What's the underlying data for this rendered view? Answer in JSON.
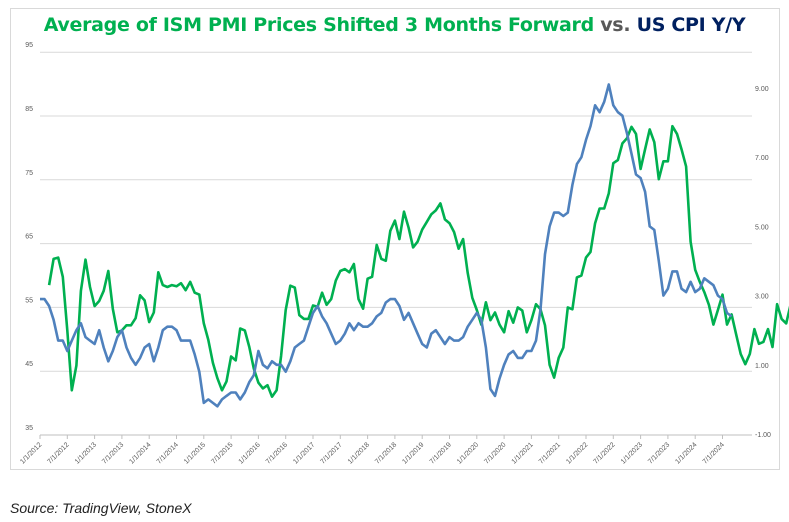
{
  "chart_data": {
    "type": "line",
    "title": "Average of ISM PMI Prices Shifted 3 Months Forward vs. US CPI Y/Y",
    "title_parts": [
      {
        "text": "Average of ISM PMI Prices Shifted 3 Months Forward",
        "color": "#00b050"
      },
      {
        "text": " vs. ",
        "color": "#595959"
      },
      {
        "text": "US CPI Y/Y",
        "color": "#002060"
      }
    ],
    "xlabel": "",
    "ylabel_left": "",
    "ylabel_right": "",
    "x_start": "1/1/2012",
    "x_end": "12/1/2024",
    "x_tick_labels": [
      "1/1/2012",
      "7/1/2012",
      "1/1/2013",
      "7/1/2013",
      "1/1/2014",
      "7/1/2014",
      "1/1/2015",
      "7/1/2015",
      "1/1/2016",
      "7/1/2016",
      "1/1/2017",
      "7/1/2017",
      "1/1/2018",
      "7/1/2018",
      "1/1/2019",
      "7/1/2019",
      "1/1/2020",
      "7/1/2020",
      "1/1/2021",
      "7/1/2021",
      "1/1/2022",
      "7/1/2022",
      "1/1/2023",
      "7/1/2023",
      "1/1/2024",
      "7/1/2024"
    ],
    "y_left": {
      "min": 35,
      "max": 95,
      "ticks": [
        "35",
        "45",
        "55",
        "65",
        "75",
        "85",
        "95"
      ]
    },
    "y_right": {
      "min": -1,
      "max": 10,
      "ticks": [
        "-1.00",
        "1.00",
        "3.00",
        "5.00",
        "7.00",
        "9.00"
      ]
    },
    "grid": true,
    "legend": "none",
    "series": [
      {
        "name": "Average of ISM PMI Prices Shifted 3 Months Forward",
        "axis": "left",
        "color": "#00b050",
        "start_month": 2,
        "values": [
          58.5,
          62.6,
          62.8,
          59.8,
          51.4,
          42.0,
          45.9,
          57.6,
          62.5,
          58.2,
          55.2,
          56.0,
          57.6,
          60.7,
          54.8,
          51.1,
          51.4,
          52.2,
          52.2,
          53.3,
          56.9,
          56.1,
          52.7,
          54.2,
          60.5,
          58.5,
          58.2,
          58.5,
          58.3,
          58.8,
          57.7,
          59.0,
          57.3,
          57.0,
          52.5,
          49.9,
          46.3,
          43.9,
          42.0,
          43.4,
          47.3,
          46.7,
          51.7,
          51.4,
          48.8,
          45.4,
          43.2,
          42.3,
          42.8,
          41.0,
          42.0,
          47.4,
          54.6,
          58.4,
          58.1,
          53.8,
          53.2,
          53.2,
          55.3,
          55.1,
          57.3,
          55.4,
          56.3,
          59.2,
          60.7,
          61.0,
          60.5,
          61.8,
          56.3,
          54.8,
          59.5,
          59.8,
          64.8,
          62.6,
          62.3,
          67.0,
          68.6,
          65.7,
          70.0,
          67.5,
          64.4,
          65.3,
          67.2,
          68.4,
          69.6,
          70.2,
          71.3,
          68.8,
          68.2,
          66.8,
          64.2,
          65.7,
          60.4,
          56.5,
          54.6,
          52.3,
          55.8,
          53.0,
          54.2,
          52.3,
          51.1,
          54.4,
          52.6,
          55.0,
          54.5,
          51.1,
          53.0,
          55.5,
          54.7,
          52.2,
          46.0,
          44.0,
          47.1,
          48.7,
          55.0,
          54.7,
          59.7,
          60.0,
          62.8,
          63.7,
          68.2,
          70.5,
          70.5,
          72.9,
          77.6,
          78.1,
          80.7,
          81.5,
          83.3,
          82.2,
          76.7,
          79.8,
          82.9,
          80.9,
          75.1,
          77.9,
          77.9,
          83.4,
          82.2,
          79.8,
          77.1,
          65.3,
          60.9,
          59.0,
          57.4,
          55.4,
          52.3,
          54.6,
          57.0,
          52.3,
          53.9,
          50.8,
          47.7,
          46.1,
          47.7,
          51.6,
          49.3,
          49.6,
          51.6,
          48.8,
          55.5,
          53.2,
          52.5,
          55.6,
          52.2,
          52.5,
          53.3,
          51.6,
          53.8,
          52.8,
          53.3,
          52.8,
          52.0,
          51.7,
          53.9
        ]
      },
      {
        "name": "US CPI Y/Y",
        "axis": "right",
        "color": "#4f81bd",
        "start_month": 0,
        "values": [
          2.9,
          2.9,
          2.7,
          2.3,
          1.7,
          1.7,
          1.4,
          1.7,
          2.0,
          2.2,
          1.8,
          1.7,
          1.6,
          2.0,
          1.5,
          1.1,
          1.4,
          1.8,
          2.0,
          1.5,
          1.2,
          1.0,
          1.2,
          1.5,
          1.6,
          1.1,
          1.5,
          2.0,
          2.1,
          2.1,
          2.0,
          1.7,
          1.7,
          1.7,
          1.3,
          0.8,
          -0.1,
          0.0,
          -0.1,
          -0.2,
          0.0,
          0.1,
          0.2,
          0.2,
          0.0,
          0.2,
          0.5,
          0.7,
          1.4,
          1.0,
          0.9,
          1.1,
          1.0,
          1.0,
          0.8,
          1.1,
          1.5,
          1.6,
          1.7,
          2.1,
          2.5,
          2.7,
          2.4,
          2.2,
          1.9,
          1.6,
          1.7,
          1.9,
          2.2,
          2.0,
          2.2,
          2.1,
          2.1,
          2.2,
          2.4,
          2.5,
          2.8,
          2.9,
          2.9,
          2.7,
          2.3,
          2.5,
          2.2,
          1.9,
          1.6,
          1.5,
          1.9,
          2.0,
          1.8,
          1.6,
          1.8,
          1.7,
          1.7,
          1.8,
          2.1,
          2.3,
          2.5,
          2.3,
          1.5,
          0.3,
          0.1,
          0.6,
          1.0,
          1.3,
          1.4,
          1.2,
          1.2,
          1.4,
          1.4,
          1.7,
          2.6,
          4.2,
          5.0,
          5.4,
          5.4,
          5.3,
          5.4,
          6.2,
          6.8,
          7.0,
          7.5,
          7.9,
          8.5,
          8.3,
          8.6,
          9.1,
          8.5,
          8.3,
          8.2,
          7.7,
          7.1,
          6.5,
          6.4,
          6.0,
          5.0,
          4.9,
          4.0,
          3.0,
          3.2,
          3.7,
          3.7,
          3.2,
          3.1,
          3.4,
          3.1,
          3.2,
          3.5,
          3.4,
          3.3,
          3.0,
          2.9,
          2.5,
          2.4
        ]
      }
    ]
  },
  "source": "Source: TradingView, StoneX"
}
